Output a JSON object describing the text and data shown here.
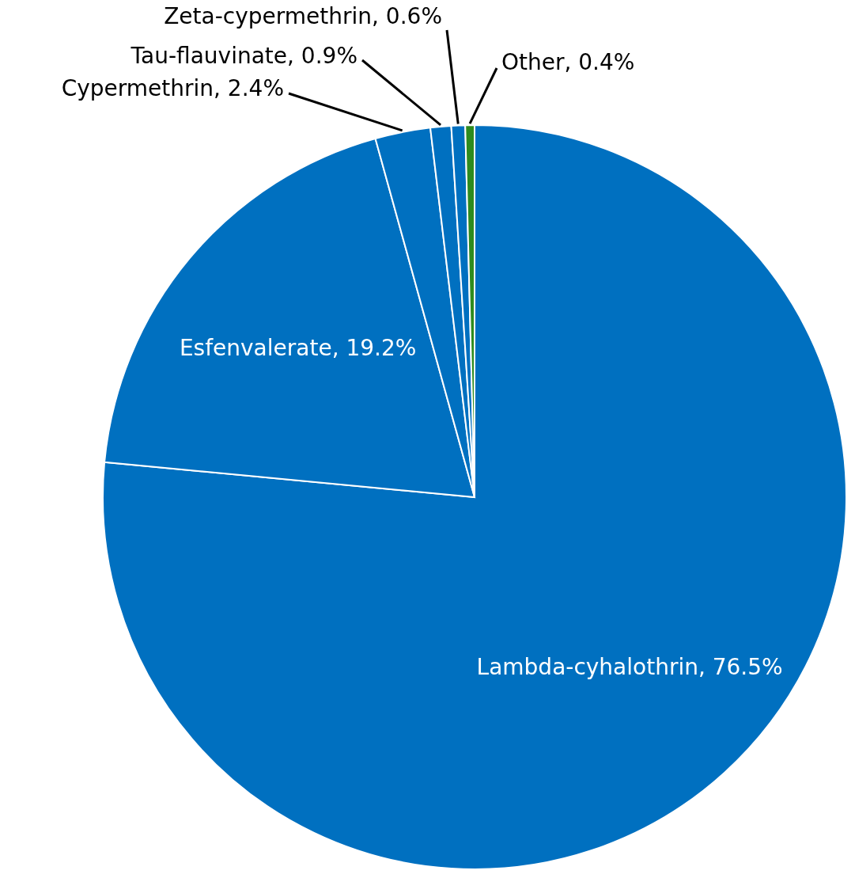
{
  "chart_data": {
    "type": "pie",
    "categories": [
      "Lambda-cyhalothrin",
      "Esfenvalerate",
      "Cypermethrin",
      "Tau-flauvinate",
      "Zeta-cypermethrin",
      "Other"
    ],
    "values": [
      76.5,
      19.2,
      2.4,
      0.9,
      0.6,
      0.4
    ],
    "colors": [
      "#0070c0",
      "#0070c0",
      "#0070c0",
      "#0070c0",
      "#0070c0",
      "#2e8b1e"
    ],
    "value_labels": [
      "76.5%",
      "19.2%",
      "2.4%",
      "0.9%",
      "0.6%",
      "0.4%"
    ]
  }
}
